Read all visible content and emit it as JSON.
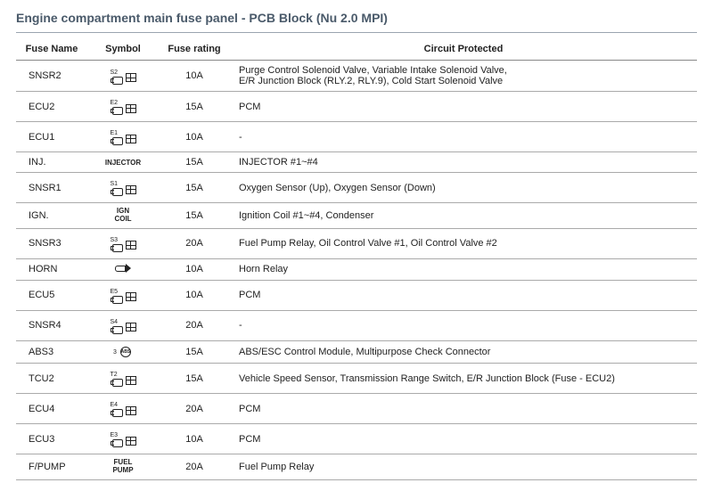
{
  "title": "Engine compartment main fuse panel - PCB Block (Nu 2.0 MPI)",
  "headers": {
    "fuse": "Fuse Name",
    "symbol": "Symbol",
    "rating": "Fuse rating",
    "circuit": "Circuit Protected"
  },
  "rows": [
    {
      "fuse": "SNSR2",
      "symTag": "S2",
      "symType": "eng-box",
      "rating": "10A",
      "circuit": "Purge Control Solenoid Valve, Variable Intake Solenoid Valve,\nE/R Junction Block (RLY.2, RLY.9), Cold Start Solenoid Valve"
    },
    {
      "fuse": "ECU2",
      "symTag": "E2",
      "symType": "eng-box",
      "rating": "15A",
      "circuit": "PCM"
    },
    {
      "fuse": "ECU1",
      "symTag": "E1",
      "symType": "eng-box",
      "rating": "10A",
      "circuit": "-"
    },
    {
      "fuse": "INJ.",
      "symTag": "",
      "symType": "text",
      "symText": "INJECTOR",
      "rating": "15A",
      "circuit": "INJECTOR #1~#4"
    },
    {
      "fuse": "SNSR1",
      "symTag": "S1",
      "symType": "eng-box",
      "rating": "15A",
      "circuit": "Oxygen Sensor (Up), Oxygen Sensor (Down)"
    },
    {
      "fuse": "IGN.",
      "symTag": "",
      "symType": "text",
      "symText": "IGN\nCOIL",
      "rating": "15A",
      "circuit": "Ignition Coil #1~#4, Condenser"
    },
    {
      "fuse": "SNSR3",
      "symTag": "S3",
      "symType": "eng-box",
      "rating": "20A",
      "circuit": "Fuel Pump Relay, Oil Control Valve #1, Oil Control Valve #2"
    },
    {
      "fuse": "HORN",
      "symTag": "",
      "symType": "horn",
      "rating": "10A",
      "circuit": "Horn Relay"
    },
    {
      "fuse": "ECU5",
      "symTag": "E5",
      "symType": "eng-box",
      "rating": "10A",
      "circuit": "PCM"
    },
    {
      "fuse": "SNSR4",
      "symTag": "S4",
      "symType": "eng-box",
      "rating": "20A",
      "circuit": "-"
    },
    {
      "fuse": "ABS3",
      "symTag": "3",
      "symType": "abs",
      "rating": "15A",
      "circuit": "ABS/ESC Control Module, Multipurpose Check Connector"
    },
    {
      "fuse": "TCU2",
      "symTag": "T2",
      "symType": "eng-box",
      "rating": "15A",
      "circuit": "Vehicle Speed Sensor, Transmission Range Switch, E/R Junction Block (Fuse - ECU2)"
    },
    {
      "fuse": "ECU4",
      "symTag": "E4",
      "symType": "eng-box",
      "rating": "20A",
      "circuit": "PCM"
    },
    {
      "fuse": "ECU3",
      "symTag": "E3",
      "symType": "eng-box",
      "rating": "10A",
      "circuit": "PCM"
    },
    {
      "fuse": "F/PUMP",
      "symTag": "",
      "symType": "text",
      "symText": "FUEL\nPUMP",
      "rating": "20A",
      "circuit": "Fuel Pump Relay"
    }
  ]
}
